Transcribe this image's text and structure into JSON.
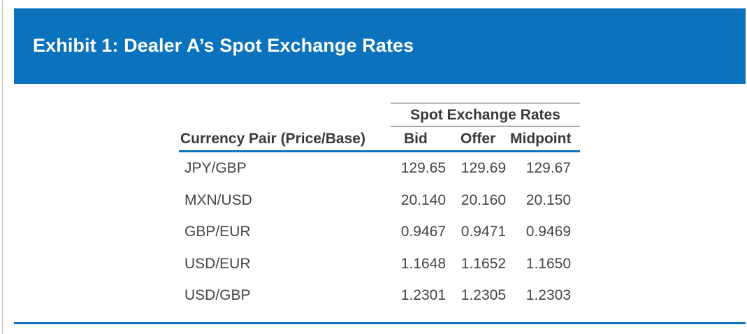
{
  "exhibit": {
    "title": "Exhibit 1: Dealer A’s Spot Exchange Rates",
    "accent_color": "#0b72bd"
  },
  "table": {
    "group_header": "Spot Exchange Rates",
    "columns": {
      "pair": "Currency Pair (Price/Base)",
      "bid": "Bid",
      "offer": "Offer",
      "midpoint": "Midpoint"
    },
    "rows": [
      {
        "pair": "JPY/GBP",
        "bid": "129.65",
        "offer": "129.69",
        "midpoint": "129.67"
      },
      {
        "pair": "MXN/USD",
        "bid": "20.140",
        "offer": "20.160",
        "midpoint": "20.150"
      },
      {
        "pair": "GBP/EUR",
        "bid": "0.9467",
        "offer": "0.9471",
        "midpoint": "0.9469"
      },
      {
        "pair": "USD/EUR",
        "bid": "1.1648",
        "offer": "1.1652",
        "midpoint": "1.1650"
      },
      {
        "pair": "USD/GBP",
        "bid": "1.2301",
        "offer": "1.2305",
        "midpoint": "1.2303"
      }
    ]
  }
}
